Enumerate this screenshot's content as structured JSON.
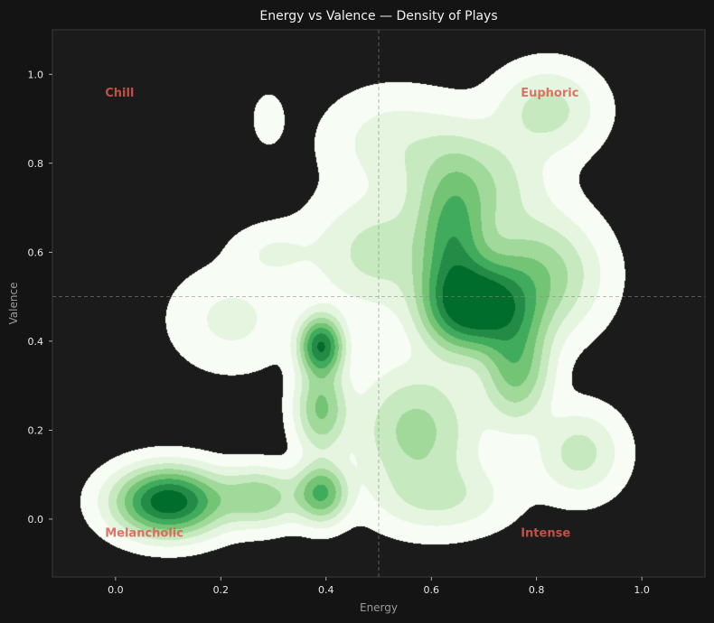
{
  "chart_data": {
    "type": "kde-density",
    "title": "Energy vs Valence — Density of Plays",
    "xlabel": "Energy",
    "ylabel": "Valence",
    "xlim": [
      -0.12,
      1.12
    ],
    "ylim": [
      -0.13,
      1.1
    ],
    "xticks": [
      0.0,
      0.2,
      0.4,
      0.6,
      0.8,
      1.0
    ],
    "xtick_labels": [
      "0.0",
      "0.2",
      "0.4",
      "0.6",
      "0.8",
      "1.0"
    ],
    "yticks": [
      0.0,
      0.2,
      0.4,
      0.6,
      0.8,
      1.0
    ],
    "ytick_labels": [
      "0.0",
      "0.2",
      "0.4",
      "0.6",
      "0.8",
      "1.0"
    ],
    "reference_lines": {
      "x": 0.5,
      "y": 0.5
    },
    "grid": false,
    "colormap": "Greens",
    "levels": 10,
    "quadrant_labels": [
      {
        "text": "Chill",
        "x": -0.02,
        "y": 0.96
      },
      {
        "text": "Euphoric",
        "x": 0.77,
        "y": 0.96
      },
      {
        "text": "Melancholic",
        "x": -0.02,
        "y": -0.03
      },
      {
        "text": "Intense",
        "x": 0.77,
        "y": -0.03
      }
    ],
    "density_peaks": [
      {
        "x": 0.1,
        "y": 0.04,
        "sx": 0.06,
        "sy": 0.045,
        "w": 1.0
      },
      {
        "x": 0.69,
        "y": 0.48,
        "sx": 0.06,
        "sy": 0.06,
        "w": 1.0
      },
      {
        "x": 0.64,
        "y": 0.6,
        "sx": 0.04,
        "sy": 0.11,
        "w": 0.55
      },
      {
        "x": 0.39,
        "y": 0.39,
        "sx": 0.025,
        "sy": 0.04,
        "w": 0.85
      },
      {
        "x": 0.39,
        "y": 0.06,
        "sx": 0.03,
        "sy": 0.04,
        "w": 0.55
      },
      {
        "x": 0.39,
        "y": 0.25,
        "sx": 0.03,
        "sy": 0.06,
        "w": 0.4
      },
      {
        "x": 0.76,
        "y": 0.35,
        "sx": 0.04,
        "sy": 0.08,
        "w": 0.45
      },
      {
        "x": 0.8,
        "y": 0.55,
        "sx": 0.07,
        "sy": 0.08,
        "w": 0.35
      },
      {
        "x": 0.27,
        "y": 0.05,
        "sx": 0.05,
        "sy": 0.04,
        "w": 0.35
      },
      {
        "x": 0.57,
        "y": 0.2,
        "sx": 0.07,
        "sy": 0.09,
        "w": 0.3
      },
      {
        "x": 0.68,
        "y": 0.75,
        "sx": 0.08,
        "sy": 0.08,
        "w": 0.25
      },
      {
        "x": 0.82,
        "y": 0.92,
        "sx": 0.06,
        "sy": 0.06,
        "w": 0.2
      },
      {
        "x": 0.5,
        "y": 0.6,
        "sx": 0.08,
        "sy": 0.08,
        "w": 0.2
      },
      {
        "x": 0.22,
        "y": 0.45,
        "sx": 0.07,
        "sy": 0.07,
        "w": 0.1
      },
      {
        "x": 0.29,
        "y": 0.9,
        "sx": 0.018,
        "sy": 0.035,
        "w": 0.07
      },
      {
        "x": 0.88,
        "y": 0.15,
        "sx": 0.05,
        "sy": 0.06,
        "w": 0.2
      },
      {
        "x": 0.53,
        "y": 0.85,
        "sx": 0.08,
        "sy": 0.07,
        "w": 0.12
      },
      {
        "x": 0.62,
        "y": 0.05,
        "sx": 0.08,
        "sy": 0.05,
        "w": 0.15
      },
      {
        "x": 0.3,
        "y": 0.6,
        "sx": 0.05,
        "sy": 0.04,
        "w": 0.08
      }
    ],
    "colors": {
      "figure_bg": "#141414",
      "axes_bg": "#1b1b1b",
      "spine": "#3a3a3a",
      "reference_line": "#8a8a8a",
      "quadrant_label": "#e05a4f",
      "palette": [
        "#f7fcf5",
        "#e5f5e0",
        "#c7e9c0",
        "#a1d99b",
        "#74c476",
        "#41ab5d",
        "#238b45",
        "#006d2c"
      ]
    }
  }
}
